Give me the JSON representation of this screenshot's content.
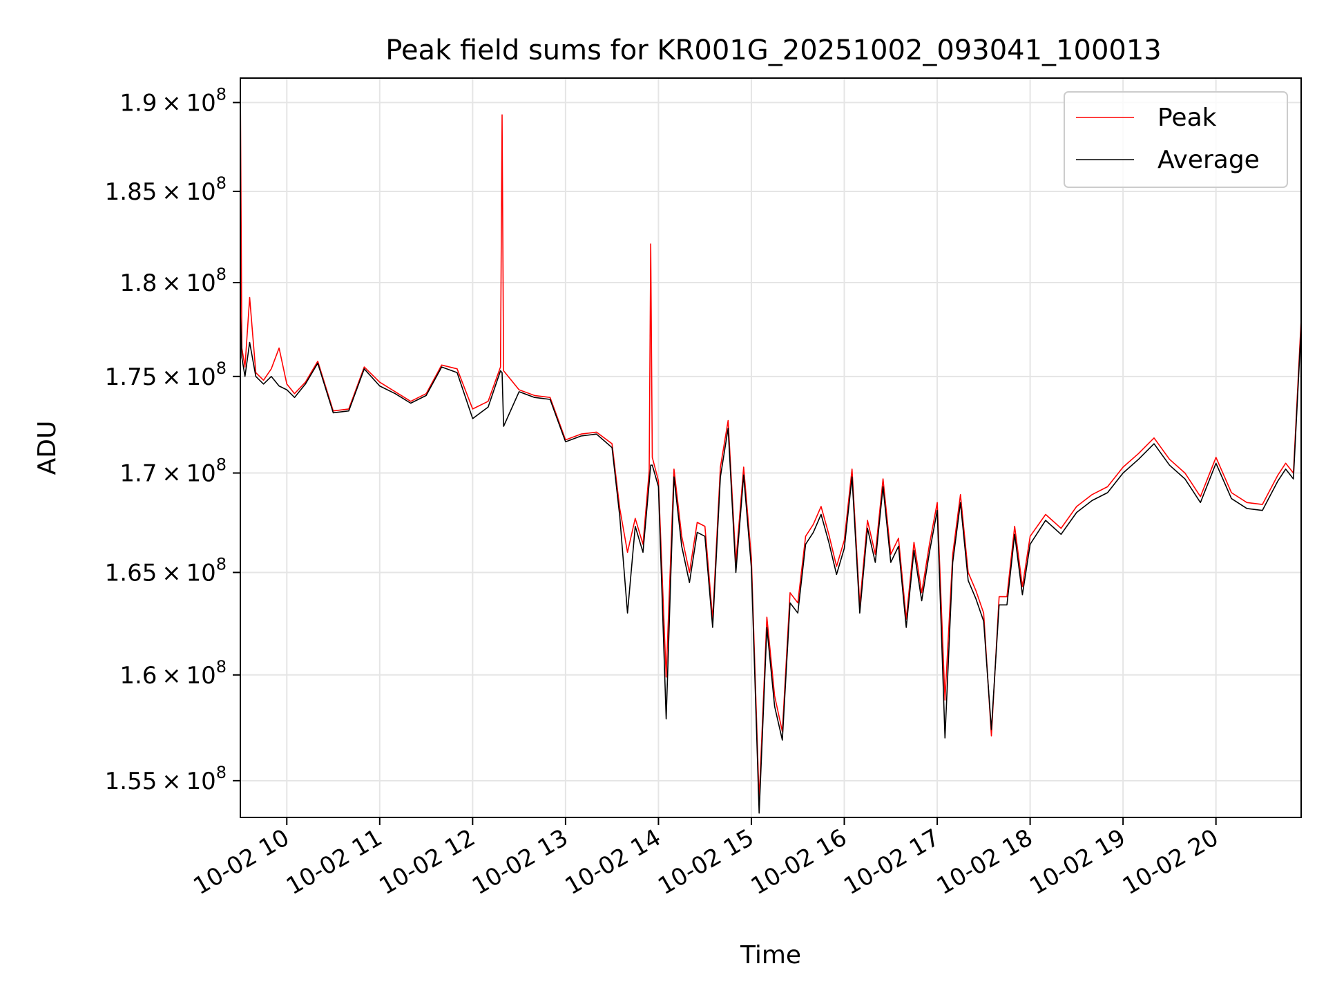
{
  "chart_data": {
    "type": "line",
    "title": "Peak field sums for KR001G_20251002_093041_100013",
    "xlabel": "Time",
    "ylabel": "ADU",
    "x_axis": {
      "kind": "datetime",
      "range": [
        "2025-10-02T09:30",
        "2025-10-02T20:55"
      ],
      "ticks": [
        "2025-10-02T10:00",
        "2025-10-02T11:00",
        "2025-10-02T12:00",
        "2025-10-02T13:00",
        "2025-10-02T14:00",
        "2025-10-02T15:00",
        "2025-10-02T16:00",
        "2025-10-02T17:00",
        "2025-10-02T18:00",
        "2025-10-02T19:00",
        "2025-10-02T20:00"
      ],
      "tick_labels": [
        "10-02 10",
        "10-02 11",
        "10-02 12",
        "10-02 13",
        "10-02 14",
        "10-02 15",
        "10-02 16",
        "10-02 17",
        "10-02 18",
        "10-02 19",
        "10-02 20"
      ],
      "tick_rotation": 30
    },
    "y_axis": {
      "scale": "log",
      "range": [
        153300000,
        191400000
      ],
      "ticks": [
        155000000,
        160000000,
        165000000,
        170000000,
        175000000,
        180000000,
        185000000,
        190000000
      ],
      "tick_mantissas": [
        "1.55",
        "1.6",
        "1.65",
        "1.7",
        "1.75",
        "1.8",
        "1.85",
        "1.9"
      ],
      "tick_times": "×",
      "tick_base": "10",
      "tick_exponent": "8"
    },
    "grid": true,
    "legend": {
      "position": "upper-right",
      "entries": [
        {
          "label": "Peak",
          "color": "#ff0000"
        },
        {
          "label": "Average",
          "color": "#000000"
        }
      ]
    },
    "series": [
      {
        "name": "Peak",
        "color": "#ff0000",
        "x": [
          "2025-10-02T09:30",
          "2025-10-02T09:31",
          "2025-10-02T09:33",
          "2025-10-02T09:36",
          "2025-10-02T09:40",
          "2025-10-02T09:45",
          "2025-10-02T09:50",
          "2025-10-02T09:55",
          "2025-10-02T10:00",
          "2025-10-02T10:05",
          "2025-10-02T10:12",
          "2025-10-02T10:20",
          "2025-10-02T10:30",
          "2025-10-02T10:40",
          "2025-10-02T10:50",
          "2025-10-02T11:00",
          "2025-10-02T11:10",
          "2025-10-02T11:20",
          "2025-10-02T11:30",
          "2025-10-02T11:40",
          "2025-10-02T11:50",
          "2025-10-02T12:00",
          "2025-10-02T12:10",
          "2025-10-02T12:18",
          "2025-10-02T12:19",
          "2025-10-02T12:20",
          "2025-10-02T12:30",
          "2025-10-02T12:40",
          "2025-10-02T12:50",
          "2025-10-02T13:00",
          "2025-10-02T13:10",
          "2025-10-02T13:20",
          "2025-10-02T13:30",
          "2025-10-02T13:35",
          "2025-10-02T13:40",
          "2025-10-02T13:45",
          "2025-10-02T13:50",
          "2025-10-02T13:54",
          "2025-10-02T13:55",
          "2025-10-02T13:56",
          "2025-10-02T14:00",
          "2025-10-02T14:05",
          "2025-10-02T14:10",
          "2025-10-02T14:15",
          "2025-10-02T14:20",
          "2025-10-02T14:25",
          "2025-10-02T14:30",
          "2025-10-02T14:35",
          "2025-10-02T14:40",
          "2025-10-02T14:45",
          "2025-10-02T14:50",
          "2025-10-02T14:55",
          "2025-10-02T15:00",
          "2025-10-02T15:05",
          "2025-10-02T15:10",
          "2025-10-02T15:15",
          "2025-10-02T15:20",
          "2025-10-02T15:25",
          "2025-10-02T15:30",
          "2025-10-02T15:35",
          "2025-10-02T15:40",
          "2025-10-02T15:45",
          "2025-10-02T15:50",
          "2025-10-02T15:55",
          "2025-10-02T16:00",
          "2025-10-02T16:05",
          "2025-10-02T16:10",
          "2025-10-02T16:15",
          "2025-10-02T16:20",
          "2025-10-02T16:25",
          "2025-10-02T16:30",
          "2025-10-02T16:35",
          "2025-10-02T16:40",
          "2025-10-02T16:45",
          "2025-10-02T16:50",
          "2025-10-02T16:55",
          "2025-10-02T17:00",
          "2025-10-02T17:05",
          "2025-10-02T17:10",
          "2025-10-02T17:15",
          "2025-10-02T17:20",
          "2025-10-02T17:25",
          "2025-10-02T17:30",
          "2025-10-02T17:35",
          "2025-10-02T17:40",
          "2025-10-02T17:45",
          "2025-10-02T17:50",
          "2025-10-02T17:55",
          "2025-10-02T18:00",
          "2025-10-02T18:10",
          "2025-10-02T18:20",
          "2025-10-02T18:30",
          "2025-10-02T18:40",
          "2025-10-02T18:50",
          "2025-10-02T19:00",
          "2025-10-02T19:10",
          "2025-10-02T19:20",
          "2025-10-02T19:30",
          "2025-10-02T19:40",
          "2025-10-02T19:50",
          "2025-10-02T20:00",
          "2025-10-02T20:10",
          "2025-10-02T20:20",
          "2025-10-02T20:30",
          "2025-10-02T20:40",
          "2025-10-02T20:45",
          "2025-10-02T20:50",
          "2025-10-02T20:55"
        ],
        "y": [
          191300000,
          176500000,
          175500000,
          179200000,
          175200000,
          174800000,
          175400000,
          176500000,
          174600000,
          174100000,
          174700000,
          175800000,
          173200000,
          173300000,
          175500000,
          174700000,
          174200000,
          173700000,
          174100000,
          175600000,
          175400000,
          173300000,
          173700000,
          175500000,
          189300000,
          175300000,
          174300000,
          174000000,
          173900000,
          171700000,
          172000000,
          172100000,
          171500000,
          168200000,
          166000000,
          167700000,
          166400000,
          170100000,
          182100000,
          170800000,
          169600000,
          159900000,
          170200000,
          166800000,
          165000000,
          167500000,
          167300000,
          162700000,
          170300000,
          172700000,
          165500000,
          170300000,
          165700000,
          154100000,
          162800000,
          159000000,
          157300000,
          164000000,
          163500000,
          166800000,
          167400000,
          168300000,
          166900000,
          165300000,
          166600000,
          170200000,
          163400000,
          167600000,
          165900000,
          169700000,
          165900000,
          166700000,
          162700000,
          166500000,
          164000000,
          166400000,
          168500000,
          158800000,
          165900000,
          168900000,
          165000000,
          164100000,
          163000000,
          157100000,
          163800000,
          163800000,
          167300000,
          164300000,
          166800000,
          167900000,
          167200000,
          168300000,
          168900000,
          169300000,
          170300000,
          171000000,
          171800000,
          170700000,
          170000000,
          168800000,
          170800000,
          169000000,
          168500000,
          168400000,
          169900000,
          170500000,
          170000000,
          178000000
        ]
      },
      {
        "name": "Average",
        "color": "#000000",
        "x": [
          "2025-10-02T09:30",
          "2025-10-02T09:31",
          "2025-10-02T09:33",
          "2025-10-02T09:36",
          "2025-10-02T09:40",
          "2025-10-02T09:45",
          "2025-10-02T09:50",
          "2025-10-02T09:55",
          "2025-10-02T10:00",
          "2025-10-02T10:05",
          "2025-10-02T10:12",
          "2025-10-02T10:20",
          "2025-10-02T10:30",
          "2025-10-02T10:40",
          "2025-10-02T10:50",
          "2025-10-02T11:00",
          "2025-10-02T11:10",
          "2025-10-02T11:20",
          "2025-10-02T11:30",
          "2025-10-02T11:40",
          "2025-10-02T11:50",
          "2025-10-02T12:00",
          "2025-10-02T12:10",
          "2025-10-02T12:18",
          "2025-10-02T12:19",
          "2025-10-02T12:20",
          "2025-10-02T12:30",
          "2025-10-02T12:40",
          "2025-10-02T12:50",
          "2025-10-02T13:00",
          "2025-10-02T13:10",
          "2025-10-02T13:20",
          "2025-10-02T13:30",
          "2025-10-02T13:35",
          "2025-10-02T13:40",
          "2025-10-02T13:45",
          "2025-10-02T13:50",
          "2025-10-02T13:54",
          "2025-10-02T13:55",
          "2025-10-02T13:56",
          "2025-10-02T14:00",
          "2025-10-02T14:05",
          "2025-10-02T14:10",
          "2025-10-02T14:15",
          "2025-10-02T14:20",
          "2025-10-02T14:25",
          "2025-10-02T14:30",
          "2025-10-02T14:35",
          "2025-10-02T14:40",
          "2025-10-02T14:45",
          "2025-10-02T14:50",
          "2025-10-02T14:55",
          "2025-10-02T15:00",
          "2025-10-02T15:05",
          "2025-10-02T15:10",
          "2025-10-02T15:15",
          "2025-10-02T15:20",
          "2025-10-02T15:25",
          "2025-10-02T15:30",
          "2025-10-02T15:35",
          "2025-10-02T15:40",
          "2025-10-02T15:45",
          "2025-10-02T15:50",
          "2025-10-02T15:55",
          "2025-10-02T16:00",
          "2025-10-02T16:05",
          "2025-10-02T16:10",
          "2025-10-02T16:15",
          "2025-10-02T16:20",
          "2025-10-02T16:25",
          "2025-10-02T16:30",
          "2025-10-02T16:35",
          "2025-10-02T16:40",
          "2025-10-02T16:45",
          "2025-10-02T16:50",
          "2025-10-02T16:55",
          "2025-10-02T17:00",
          "2025-10-02T17:05",
          "2025-10-02T17:10",
          "2025-10-02T17:15",
          "2025-10-02T17:20",
          "2025-10-02T17:25",
          "2025-10-02T17:30",
          "2025-10-02T17:35",
          "2025-10-02T17:40",
          "2025-10-02T17:45",
          "2025-10-02T17:50",
          "2025-10-02T17:55",
          "2025-10-02T18:00",
          "2025-10-02T18:10",
          "2025-10-02T18:20",
          "2025-10-02T18:30",
          "2025-10-02T18:40",
          "2025-10-02T18:50",
          "2025-10-02T19:00",
          "2025-10-02T19:10",
          "2025-10-02T19:20",
          "2025-10-02T19:30",
          "2025-10-02T19:40",
          "2025-10-02T19:50",
          "2025-10-02T20:00",
          "2025-10-02T20:10",
          "2025-10-02T20:20",
          "2025-10-02T20:30",
          "2025-10-02T20:40",
          "2025-10-02T20:45",
          "2025-10-02T20:50",
          "2025-10-02T20:55"
        ],
        "y": [
          178500000,
          176000000,
          175000000,
          176800000,
          175000000,
          174600000,
          175000000,
          174500000,
          174300000,
          173900000,
          174600000,
          175700000,
          173100000,
          173200000,
          175400000,
          174500000,
          174100000,
          173600000,
          174000000,
          175500000,
          175200000,
          172800000,
          173400000,
          175300000,
          175200000,
          172400000,
          174200000,
          173900000,
          173800000,
          171600000,
          171900000,
          172000000,
          171300000,
          167800000,
          163000000,
          167300000,
          166000000,
          169500000,
          170400000,
          170400000,
          169300000,
          157900000,
          169800000,
          166300000,
          164500000,
          167000000,
          166800000,
          162300000,
          169800000,
          172300000,
          165000000,
          169900000,
          165200000,
          153500000,
          162300000,
          158500000,
          156900000,
          163500000,
          163000000,
          166400000,
          167000000,
          167900000,
          166500000,
          164900000,
          166200000,
          169800000,
          163000000,
          167200000,
          165500000,
          169300000,
          165500000,
          166300000,
          162300000,
          166100000,
          163600000,
          166000000,
          168100000,
          157000000,
          165500000,
          168500000,
          164600000,
          163700000,
          162600000,
          157400000,
          163400000,
          163400000,
          166900000,
          163900000,
          166400000,
          167600000,
          166900000,
          168000000,
          168600000,
          169000000,
          170000000,
          170700000,
          171500000,
          170400000,
          169700000,
          168500000,
          170500000,
          168700000,
          168200000,
          168100000,
          169600000,
          170200000,
          169700000,
          177600000
        ]
      }
    ]
  }
}
